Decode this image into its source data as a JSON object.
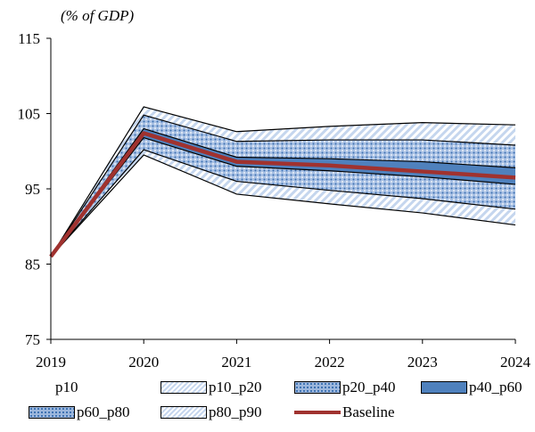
{
  "chart_data": {
    "type": "area",
    "unit_label": "(% of GDP)",
    "x": [
      "2019",
      "2020",
      "2021",
      "2022",
      "2023",
      "2024"
    ],
    "ylim": [
      75,
      115
    ],
    "yticks": [
      75,
      85,
      95,
      105,
      115
    ],
    "grid": false,
    "series": [
      {
        "name": "p10",
        "values": [
          86.0,
          99.5,
          94.3,
          93.0,
          91.8,
          90.2
        ]
      },
      {
        "name": "p20",
        "values": [
          86.0,
          100.2,
          96.0,
          94.8,
          93.7,
          92.3
        ]
      },
      {
        "name": "p40",
        "values": [
          86.0,
          101.8,
          98.0,
          97.4,
          96.6,
          95.6
        ]
      },
      {
        "name": "p60",
        "values": [
          86.0,
          103.0,
          99.2,
          99.0,
          98.6,
          97.8
        ]
      },
      {
        "name": "p80",
        "values": [
          86.0,
          104.8,
          101.3,
          101.5,
          101.5,
          100.8
        ]
      },
      {
        "name": "p90",
        "values": [
          86.0,
          105.9,
          102.6,
          103.3,
          103.8,
          103.5
        ]
      },
      {
        "name": "Baseline",
        "values": [
          86.0,
          102.4,
          98.6,
          98.1,
          97.3,
          96.5
        ]
      }
    ],
    "legend": {
      "placement": "bottom",
      "entries": [
        {
          "label": "p10",
          "style": "none"
        },
        {
          "label": "p10_p20",
          "style": "light-hatch"
        },
        {
          "label": "p20_p40",
          "style": "dotted-blue"
        },
        {
          "label": "p40_p60",
          "style": "solid-blue"
        },
        {
          "label": "p60_p80",
          "style": "dotted-blue"
        },
        {
          "label": "p80_p90",
          "style": "light-hatch"
        },
        {
          "label": "Baseline",
          "style": "line"
        }
      ]
    },
    "colors": {
      "solid_blue": "#4f81bd",
      "dotted_blue": "#9db7dd",
      "dotted_dot": "#3a6fb0",
      "light_hatch": "#c5d6ee",
      "baseline": "#a0322f"
    }
  }
}
